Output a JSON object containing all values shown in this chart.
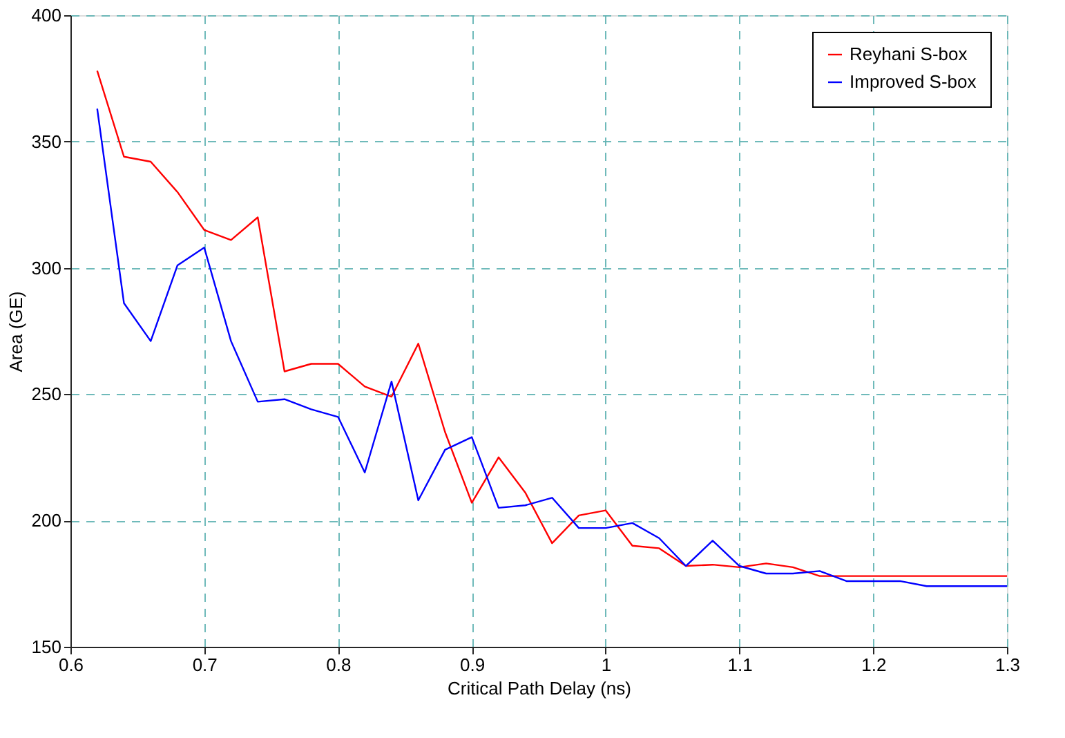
{
  "chart_data": {
    "type": "line",
    "xlabel": "Critical Path Delay (ns)",
    "ylabel": "Area (GE)",
    "x": [
      0.62,
      0.64,
      0.66,
      0.68,
      0.7,
      0.72,
      0.74,
      0.76,
      0.78,
      0.8,
      0.82,
      0.84,
      0.86,
      0.88,
      0.9,
      0.92,
      0.94,
      0.96,
      0.98,
      1.0,
      1.02,
      1.04,
      1.06,
      1.08,
      1.1,
      1.12,
      1.14,
      1.16,
      1.18,
      1.2,
      1.22,
      1.24,
      1.26,
      1.28,
      1.3
    ],
    "series": [
      {
        "name": "Reyhani S-box",
        "color": "#ff0000",
        "values": [
          378,
          344,
          342,
          330,
          315,
          311,
          320,
          259,
          262,
          262,
          253,
          249,
          270,
          235,
          207,
          225,
          211,
          191,
          202,
          204,
          190,
          189,
          182,
          182.5,
          181.5,
          183,
          181.5,
          178,
          178,
          178,
          178,
          178,
          178,
          178,
          178
        ]
      },
      {
        "name": "Improved S-box",
        "color": "#0000ff",
        "values": [
          363,
          286,
          271,
          301,
          308,
          271,
          247,
          248,
          244,
          241,
          219,
          255,
          208,
          228,
          233,
          205,
          206,
          209,
          197,
          197,
          199,
          193,
          182,
          192,
          182,
          179,
          179,
          180,
          176,
          176,
          176,
          174,
          174,
          174,
          174
        ]
      }
    ],
    "xlim": [
      0.6,
      1.3
    ],
    "xticks": [
      0.6,
      0.7,
      0.8,
      0.9,
      1,
      1.1,
      1.2,
      1.3
    ],
    "ylim": [
      150,
      400
    ],
    "yticks": [
      150,
      200,
      250,
      300,
      350,
      400
    ],
    "grid": true,
    "legend": "top right",
    "marker": "none",
    "line_style": "solid"
  }
}
